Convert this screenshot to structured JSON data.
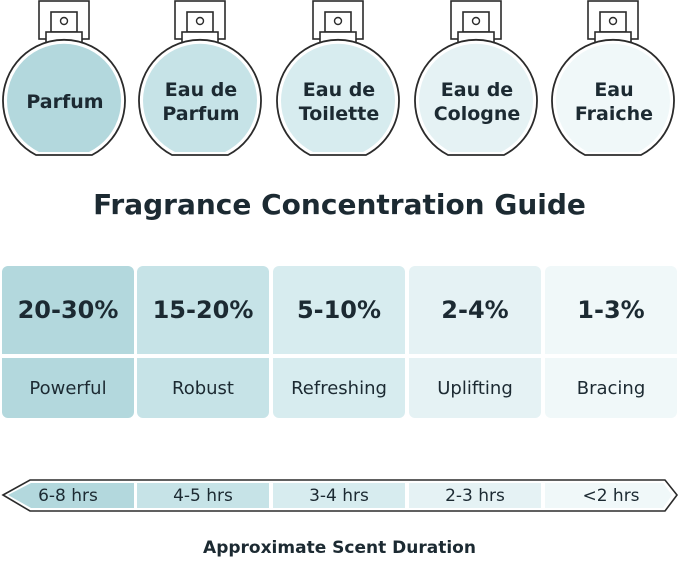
{
  "bottles": [
    {
      "line1": "",
      "line2": "Parfum",
      "color": "#b3d8dd"
    },
    {
      "line1": "Eau de",
      "line2": "Parfum",
      "color": "#c6e3e7"
    },
    {
      "line1": "Eau de",
      "line2": "Toilette",
      "color": "#d7ecef"
    },
    {
      "line1": "Eau de",
      "line2": "Cologne",
      "color": "#e5f2f4"
    },
    {
      "line1": "Eau",
      "line2": "Fraiche",
      "color": "#f0f8f9"
    }
  ],
  "title": "Fragrance Concentration Guide",
  "columns": [
    {
      "percent": "20-30%",
      "descriptor": "Powerful",
      "duration": "6-8 hrs"
    },
    {
      "percent": "15-20%",
      "descriptor": "Robust",
      "duration": "4-5 hrs"
    },
    {
      "percent": "5-10%",
      "descriptor": "Refreshing",
      "duration": "3-4 hrs"
    },
    {
      "percent": "2-4%",
      "descriptor": "Uplifting",
      "duration": "2-3 hrs"
    },
    {
      "percent": "1-3%",
      "descriptor": "Bracing",
      "duration": "<2 hrs"
    }
  ],
  "footer": "Approximate Scent Duration",
  "colors": {
    "text": "#1c2a32",
    "outline": "#2b2b2b"
  }
}
